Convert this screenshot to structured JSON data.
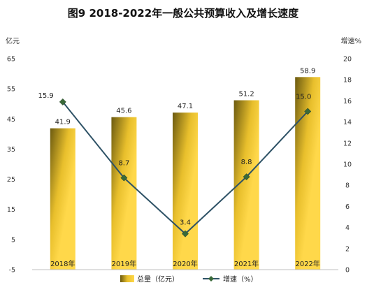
{
  "chart_data": {
    "type": "bar",
    "title": "图9  2018-2022年一般公共预算收入及增长速度",
    "categories": [
      "2018年",
      "2019年",
      "2020年",
      "2021年",
      "2022年"
    ],
    "left_axis": {
      "unit": "亿元",
      "ticks": [
        65,
        55,
        45,
        35,
        25,
        15,
        5,
        -5
      ],
      "range": [
        -5,
        65
      ]
    },
    "right_axis": {
      "unit": "增速%",
      "ticks": [
        20,
        18,
        16,
        14,
        12,
        10,
        8,
        6,
        4,
        2,
        0
      ],
      "range": [
        0,
        20
      ]
    },
    "series": [
      {
        "name": "总量（亿元）",
        "kind": "bar",
        "axis": "left",
        "values": [
          41.9,
          45.6,
          47.1,
          51.2,
          58.9
        ],
        "labels": [
          "41.9",
          "45.6",
          "47.1",
          "51.2",
          "58.9"
        ]
      },
      {
        "name": "增速（%）",
        "kind": "line",
        "axis": "right",
        "values": [
          15.9,
          8.7,
          3.4,
          8.8,
          15.0
        ],
        "labels": [
          "15.9",
          "8.7",
          "3.4",
          "8.8",
          "15.0"
        ]
      }
    ],
    "colors": {
      "bar_light": "#ffd84a",
      "bar_mid": "#f2c428",
      "bar_dark": "#6b5a10",
      "line": "#2e5266"
    },
    "grid": false,
    "legend_position": "bottom"
  }
}
